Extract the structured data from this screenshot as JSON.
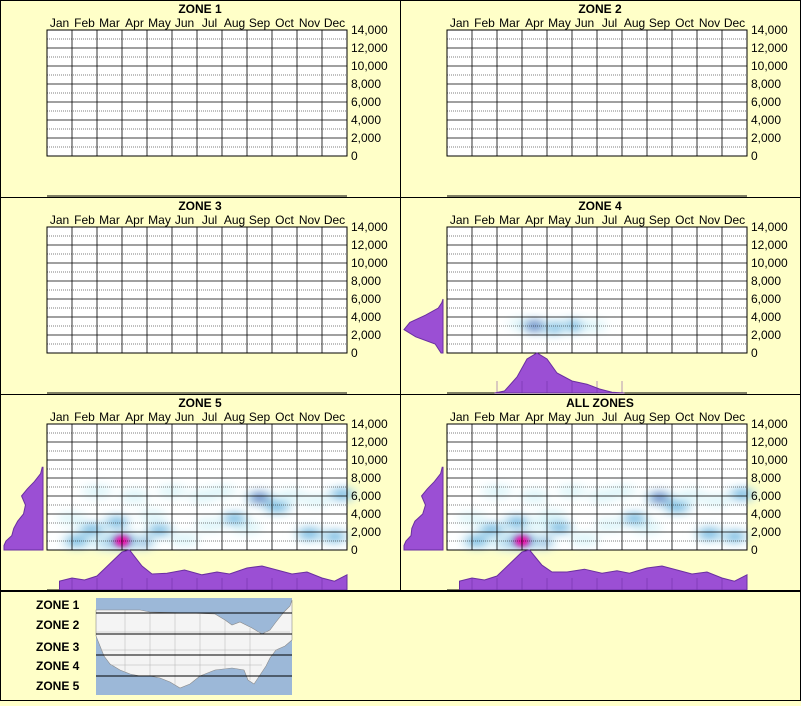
{
  "months": [
    "Jan",
    "Feb",
    "Mar",
    "Apr",
    "May",
    "Jun",
    "Jul",
    "Aug",
    "Sep",
    "Oct",
    "Nov",
    "Dec"
  ],
  "y_ticks": [
    "14,000",
    "12,000",
    "10,000",
    "8,000",
    "6,000",
    "4,000",
    "2,000",
    "0"
  ],
  "chart_data": [
    {
      "type": "heatmap",
      "title": "ZONE 1",
      "x_categories": [
        "Jan",
        "Feb",
        "Mar",
        "Apr",
        "May",
        "Jun",
        "Jul",
        "Aug",
        "Sep",
        "Oct",
        "Nov",
        "Dec"
      ],
      "ylim": [
        0,
        14000
      ],
      "grid": true,
      "hotspots": [],
      "elevation_profile": [],
      "month_profile": []
    },
    {
      "type": "heatmap",
      "title": "ZONE 2",
      "x_categories": [
        "Jan",
        "Feb",
        "Mar",
        "Apr",
        "May",
        "Jun",
        "Jul",
        "Aug",
        "Sep",
        "Oct",
        "Nov",
        "Dec"
      ],
      "ylim": [
        0,
        14000
      ],
      "grid": true,
      "hotspots": [],
      "elevation_profile": [],
      "month_profile": []
    },
    {
      "type": "heatmap",
      "title": "ZONE 3",
      "x_categories": [
        "Jan",
        "Feb",
        "Mar",
        "Apr",
        "May",
        "Jun",
        "Jul",
        "Aug",
        "Sep",
        "Oct",
        "Nov",
        "Dec"
      ],
      "ylim": [
        0,
        14000
      ],
      "grid": true,
      "hotspots": [],
      "elevation_profile": [],
      "month_profile": []
    },
    {
      "type": "heatmap",
      "title": "ZONE 4",
      "x_categories": [
        "Jan",
        "Feb",
        "Mar",
        "Apr",
        "May",
        "Jun",
        "Jul",
        "Aug",
        "Sep",
        "Oct",
        "Nov",
        "Dec"
      ],
      "ylim": [
        0,
        14000
      ],
      "grid": true,
      "hotspots": [
        {
          "month": 3.5,
          "elev": 3000,
          "intensity": 0.5
        },
        {
          "month": 4.2,
          "elev": 2800,
          "intensity": 0.45
        },
        {
          "month": 5.0,
          "elev": 3000,
          "intensity": 0.35
        },
        {
          "month": 5.8,
          "elev": 3000,
          "intensity": 0.25
        },
        {
          "month": 3.0,
          "elev": 3200,
          "intensity": 0.2
        }
      ],
      "elevation_profile": [
        {
          "elev": 0,
          "v": 0.05
        },
        {
          "elev": 1000,
          "v": 0.2
        },
        {
          "elev": 1800,
          "v": 0.7
        },
        {
          "elev": 2600,
          "v": 1.0
        },
        {
          "elev": 3400,
          "v": 0.85
        },
        {
          "elev": 4200,
          "v": 0.45
        },
        {
          "elev": 5000,
          "v": 0.12
        },
        {
          "elev": 5600,
          "v": 0.03
        },
        {
          "elev": 6000,
          "v": 0
        }
      ],
      "month_profile": [
        {
          "month": 1.9,
          "v": 0
        },
        {
          "month": 2.3,
          "v": 0.05
        },
        {
          "month": 2.8,
          "v": 0.4
        },
        {
          "month": 3.2,
          "v": 0.85
        },
        {
          "month": 3.6,
          "v": 1.0
        },
        {
          "month": 4.0,
          "v": 0.85
        },
        {
          "month": 4.4,
          "v": 0.5
        },
        {
          "month": 5.0,
          "v": 0.3
        },
        {
          "month": 5.6,
          "v": 0.22
        },
        {
          "month": 6.1,
          "v": 0.1
        },
        {
          "month": 6.6,
          "v": 0.02
        },
        {
          "month": 7.1,
          "v": 0
        }
      ]
    },
    {
      "type": "heatmap",
      "title": "ZONE 5",
      "x_categories": [
        "Jan",
        "Feb",
        "Mar",
        "Apr",
        "May",
        "Jun",
        "Jul",
        "Aug",
        "Sep",
        "Oct",
        "Nov",
        "Dec"
      ],
      "ylim": [
        0,
        14000
      ],
      "grid": true,
      "hotspots": [
        {
          "month": 3.0,
          "elev": 1000,
          "intensity": 1.0
        },
        {
          "month": 2.5,
          "elev": 800,
          "intensity": 0.55
        },
        {
          "month": 3.7,
          "elev": 900,
          "intensity": 0.55
        },
        {
          "month": 1.2,
          "elev": 1000,
          "intensity": 0.45
        },
        {
          "month": 1.8,
          "elev": 2300,
          "intensity": 0.4
        },
        {
          "month": 2.8,
          "elev": 3100,
          "intensity": 0.35
        },
        {
          "month": 4.5,
          "elev": 2200,
          "intensity": 0.35
        },
        {
          "month": 5.5,
          "elev": 1200,
          "intensity": 0.3
        },
        {
          "month": 6.5,
          "elev": 2800,
          "intensity": 0.3
        },
        {
          "month": 7.5,
          "elev": 3500,
          "intensity": 0.35
        },
        {
          "month": 8.5,
          "elev": 5800,
          "intensity": 0.5
        },
        {
          "month": 9.2,
          "elev": 4800,
          "intensity": 0.45
        },
        {
          "month": 8.0,
          "elev": 2500,
          "intensity": 0.3
        },
        {
          "month": 10.5,
          "elev": 1800,
          "intensity": 0.45
        },
        {
          "month": 11.8,
          "elev": 6200,
          "intensity": 0.4
        },
        {
          "month": 2.0,
          "elev": 6500,
          "intensity": 0.3
        },
        {
          "month": 3.5,
          "elev": 6000,
          "intensity": 0.3
        },
        {
          "month": 5.0,
          "elev": 6500,
          "intensity": 0.25
        },
        {
          "month": 6.2,
          "elev": 6000,
          "intensity": 0.25
        },
        {
          "month": 9.8,
          "elev": 6000,
          "intensity": 0.3
        },
        {
          "month": 10.8,
          "elev": 5500,
          "intensity": 0.2
        },
        {
          "month": 11.5,
          "elev": 1500,
          "intensity": 0.35
        },
        {
          "month": 1.0,
          "elev": 3500,
          "intensity": 0.25
        },
        {
          "month": 7.0,
          "elev": 6500,
          "intensity": 0.2
        },
        {
          "month": 4.2,
          "elev": 3800,
          "intensity": 0.2
        }
      ],
      "elevation_profile": [
        {
          "elev": 0,
          "v": 1.0
        },
        {
          "elev": 500,
          "v": 1.0
        },
        {
          "elev": 1000,
          "v": 0.95
        },
        {
          "elev": 1600,
          "v": 0.8
        },
        {
          "elev": 2400,
          "v": 0.75
        },
        {
          "elev": 3200,
          "v": 0.65
        },
        {
          "elev": 4000,
          "v": 0.5
        },
        {
          "elev": 5000,
          "v": 0.45
        },
        {
          "elev": 6000,
          "v": 0.55
        },
        {
          "elev": 6800,
          "v": 0.4
        },
        {
          "elev": 7600,
          "v": 0.22
        },
        {
          "elev": 8500,
          "v": 0.06
        },
        {
          "elev": 9200,
          "v": 0.02
        }
      ],
      "month_profile": [
        {
          "month": 0.5,
          "v": 0.22
        },
        {
          "month": 1.0,
          "v": 0.3
        },
        {
          "month": 1.5,
          "v": 0.25
        },
        {
          "month": 2.0,
          "v": 0.35
        },
        {
          "month": 2.5,
          "v": 0.65
        },
        {
          "month": 3.0,
          "v": 0.95
        },
        {
          "month": 3.3,
          "v": 1.0
        },
        {
          "month": 3.8,
          "v": 0.6
        },
        {
          "month": 4.2,
          "v": 0.4
        },
        {
          "month": 4.8,
          "v": 0.42
        },
        {
          "month": 5.5,
          "v": 0.5
        },
        {
          "month": 6.2,
          "v": 0.38
        },
        {
          "month": 6.8,
          "v": 0.45
        },
        {
          "month": 7.3,
          "v": 0.4
        },
        {
          "month": 8.0,
          "v": 0.55
        },
        {
          "month": 8.6,
          "v": 0.6
        },
        {
          "month": 9.2,
          "v": 0.5
        },
        {
          "month": 9.8,
          "v": 0.4
        },
        {
          "month": 10.4,
          "v": 0.45
        },
        {
          "month": 11.0,
          "v": 0.3
        },
        {
          "month": 11.5,
          "v": 0.22
        },
        {
          "month": 12.0,
          "v": 0.38
        }
      ]
    },
    {
      "type": "heatmap",
      "title": "ALL ZONES",
      "x_categories": [
        "Jan",
        "Feb",
        "Mar",
        "Apr",
        "May",
        "Jun",
        "Jul",
        "Aug",
        "Sep",
        "Oct",
        "Nov",
        "Dec"
      ],
      "ylim": [
        0,
        14000
      ],
      "grid": true,
      "hotspots": [
        {
          "month": 3.0,
          "elev": 1000,
          "intensity": 1.0
        },
        {
          "month": 2.5,
          "elev": 800,
          "intensity": 0.55
        },
        {
          "month": 3.7,
          "elev": 900,
          "intensity": 0.55
        },
        {
          "month": 1.2,
          "elev": 1000,
          "intensity": 0.45
        },
        {
          "month": 1.8,
          "elev": 2300,
          "intensity": 0.4
        },
        {
          "month": 2.8,
          "elev": 3100,
          "intensity": 0.4
        },
        {
          "month": 3.8,
          "elev": 3000,
          "intensity": 0.3
        },
        {
          "month": 4.5,
          "elev": 2500,
          "intensity": 0.35
        },
        {
          "month": 5.5,
          "elev": 1200,
          "intensity": 0.3
        },
        {
          "month": 6.5,
          "elev": 2800,
          "intensity": 0.3
        },
        {
          "month": 7.5,
          "elev": 3500,
          "intensity": 0.35
        },
        {
          "month": 8.5,
          "elev": 5800,
          "intensity": 0.5
        },
        {
          "month": 9.2,
          "elev": 4800,
          "intensity": 0.45
        },
        {
          "month": 8.0,
          "elev": 2500,
          "intensity": 0.3
        },
        {
          "month": 10.5,
          "elev": 1800,
          "intensity": 0.45
        },
        {
          "month": 11.8,
          "elev": 6200,
          "intensity": 0.4
        },
        {
          "month": 2.0,
          "elev": 6500,
          "intensity": 0.3
        },
        {
          "month": 3.5,
          "elev": 6000,
          "intensity": 0.3
        },
        {
          "month": 5.0,
          "elev": 6500,
          "intensity": 0.25
        },
        {
          "month": 6.2,
          "elev": 6000,
          "intensity": 0.25
        },
        {
          "month": 9.8,
          "elev": 6000,
          "intensity": 0.3
        },
        {
          "month": 10.8,
          "elev": 5500,
          "intensity": 0.2
        },
        {
          "month": 11.5,
          "elev": 1500,
          "intensity": 0.35
        },
        {
          "month": 1.0,
          "elev": 3500,
          "intensity": 0.25
        },
        {
          "month": 7.0,
          "elev": 6500,
          "intensity": 0.2
        },
        {
          "month": 4.2,
          "elev": 3800,
          "intensity": 0.25
        }
      ],
      "elevation_profile": [
        {
          "elev": 0,
          "v": 1.0
        },
        {
          "elev": 500,
          "v": 1.0
        },
        {
          "elev": 1000,
          "v": 0.95
        },
        {
          "elev": 1600,
          "v": 0.82
        },
        {
          "elev": 2400,
          "v": 0.8
        },
        {
          "elev": 3200,
          "v": 0.72
        },
        {
          "elev": 4000,
          "v": 0.52
        },
        {
          "elev": 5000,
          "v": 0.45
        },
        {
          "elev": 6000,
          "v": 0.55
        },
        {
          "elev": 6800,
          "v": 0.4
        },
        {
          "elev": 7600,
          "v": 0.22
        },
        {
          "elev": 8500,
          "v": 0.06
        },
        {
          "elev": 9200,
          "v": 0.02
        }
      ],
      "month_profile": [
        {
          "month": 0.5,
          "v": 0.22
        },
        {
          "month": 1.0,
          "v": 0.3
        },
        {
          "month": 1.5,
          "v": 0.25
        },
        {
          "month": 2.0,
          "v": 0.35
        },
        {
          "month": 2.5,
          "v": 0.65
        },
        {
          "month": 3.0,
          "v": 0.95
        },
        {
          "month": 3.3,
          "v": 1.0
        },
        {
          "month": 3.8,
          "v": 0.62
        },
        {
          "month": 4.2,
          "v": 0.45
        },
        {
          "month": 4.8,
          "v": 0.45
        },
        {
          "month": 5.5,
          "v": 0.52
        },
        {
          "month": 6.2,
          "v": 0.42
        },
        {
          "month": 6.8,
          "v": 0.48
        },
        {
          "month": 7.3,
          "v": 0.42
        },
        {
          "month": 8.0,
          "v": 0.55
        },
        {
          "month": 8.6,
          "v": 0.6
        },
        {
          "month": 9.2,
          "v": 0.5
        },
        {
          "month": 9.8,
          "v": 0.4
        },
        {
          "month": 10.4,
          "v": 0.45
        },
        {
          "month": 11.0,
          "v": 0.3
        },
        {
          "month": 11.5,
          "v": 0.22
        },
        {
          "month": 12.0,
          "v": 0.38
        }
      ]
    }
  ],
  "legend": {
    "zones": [
      "ZONE 1",
      "ZONE 2",
      "ZONE 3",
      "ZONE 4",
      "ZONE 5"
    ]
  },
  "colors": {
    "background": "#ffffc8",
    "profile_fill": "#9b4fd4",
    "profile_stroke": "#6a2fa0",
    "plot_background": "#ffffff",
    "heat_low": "#d8f4f8",
    "heat_mid": "#3aa0d8",
    "heat_high": "#0a2ea8",
    "heat_peak": "#ff00a8",
    "map_water": "#9cb8d8",
    "map_land": "#f4f4f4"
  }
}
